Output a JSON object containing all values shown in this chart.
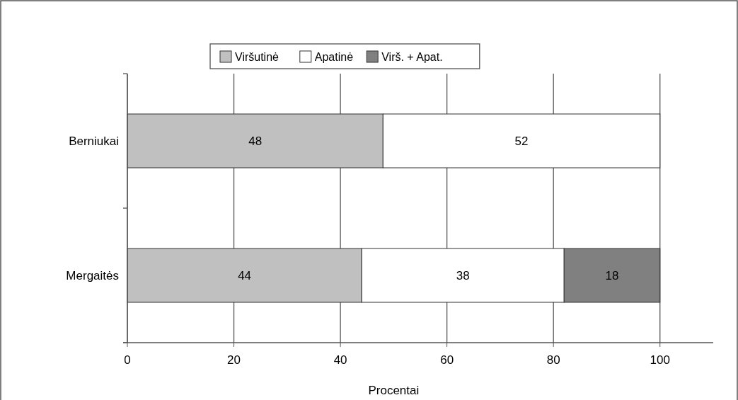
{
  "chart_data": {
    "type": "bar",
    "orientation": "horizontal",
    "stacked": true,
    "categories": [
      "Berniukai",
      "Mergaitės"
    ],
    "series": [
      {
        "name": "Viršutinė",
        "color": "#c0c0c0",
        "values": [
          48,
          44
        ]
      },
      {
        "name": "Apatinė",
        "color": "#ffffff",
        "values": [
          52,
          38
        ]
      },
      {
        "name": "Virš. + Apat.",
        "color": "#808080",
        "values": [
          null,
          18
        ]
      }
    ],
    "xlim": [
      0,
      110
    ],
    "xticks": [
      0,
      20,
      40,
      60,
      80,
      100
    ],
    "xlabel": "Procentai",
    "grid": "x",
    "legend": "top",
    "data_labels": true
  }
}
